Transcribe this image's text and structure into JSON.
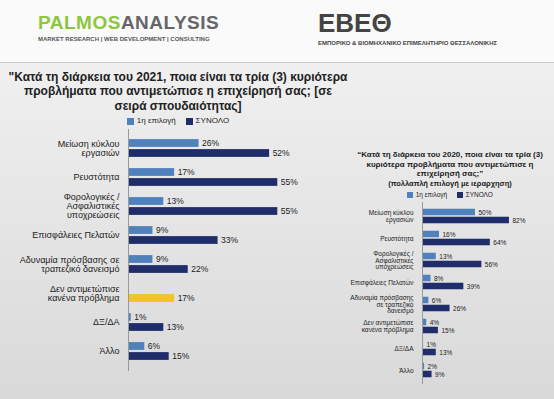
{
  "header": {
    "brand": [
      "PALMOS",
      "ANALYSIS"
    ],
    "tagline": "MARKET RESEARCH | WEB DEVELOPMENT | CONSULTING",
    "org": "ΕΒΕΘ",
    "org_subtitle": "ΕΜΠΟΡΙΚΟ & ΒΙΟΜΗΧΑΝΙΚΟ ΕΠΙΜΕΛΗΤΗΡΙΟ ΘΕΣΣΑΛΟΝΙΚΗΣ"
  },
  "chart_data": [
    {
      "type": "bar",
      "orientation": "horizontal",
      "title": "\"Κατά τη διάρκεια του 2021, ποια είναι τα τρία (3) κυριότερα προβλήματα που αντιμετώπισε η επιχείρησή σας; [σε σειρά σπουδαιότητας]",
      "categories": [
        "Μείωση κύκλου εργασιών",
        "Ρευστότητα",
        "Φορολογικές / Ασφαλιστικές υποχρεώσεις",
        "Επισφάλειες Πελατών",
        "Αδυναμία πρόσβασης σε τραπεζικό δανεισμό",
        "Δεν αντιμετώπισε κανένα πρόβλημα",
        "ΔΞ/ΔΑ",
        "Άλλο"
      ],
      "series": [
        {
          "name": "1η επιλογή",
          "color": "#4f81bd",
          "values": [
            26,
            17,
            13,
            9,
            9,
            null,
            1,
            6
          ],
          "value_labels": [
            "26%",
            "17%",
            "13%",
            "9%",
            "9%",
            null,
            "1%",
            "6%"
          ]
        },
        {
          "name": "ΣΥΝΟΛΟ",
          "color": "#1f2d6b",
          "colors": [
            "#1f2d6b",
            "#1f2d6b",
            "#1f2d6b",
            "#1f2d6b",
            "#1f2d6b",
            "#f2c230",
            "#1f2d6b",
            "#1f2d6b"
          ],
          "values": [
            52,
            55,
            55,
            33,
            22,
            17,
            13,
            15
          ],
          "value_labels": [
            "52%",
            "55%",
            "55%",
            "33%",
            "22%",
            "17%",
            "13%",
            "15%"
          ]
        }
      ],
      "xlim": [
        0,
        70
      ],
      "data_labels": true,
      "tick_labels": "y",
      "legend": "top"
    },
    {
      "type": "bar",
      "orientation": "horizontal",
      "title": "“Κατά τη διάρκεια του 2020, ποια είναι τα τρία (3) κυριότερα προβλήματα που αντιμετώπισε η επιχείρησή σας;”",
      "subtitle": "(πολλαπλή επιλογή με ιεραρχηση)",
      "categories": [
        "Μείωση κύκλου εργασιών",
        "Ρευστότητα",
        "Φορολογικές / Ασφαλιστικές υποχρεώσεις",
        "Επισφάλειες Πελατών",
        "Αδυναμία πρόσβασης σε τραπεζικό δανεισμό",
        "Δεν αντιμετώπισε κανένα πρόβλημα",
        "ΔΞ/ΔΑ",
        "Άλλο"
      ],
      "series": [
        {
          "name": "1η επιλογή",
          "color": "#4f81bd",
          "values": [
            50,
            16,
            13,
            8,
            6,
            4,
            1,
            2
          ],
          "value_labels": [
            "50%",
            "16%",
            "13%",
            "8%",
            "6%",
            "4%",
            "1%",
            "2%"
          ]
        },
        {
          "name": "ΣΥΝΟΛΟ",
          "color": "#1f2d6b",
          "values": [
            82,
            64,
            56,
            39,
            26,
            15,
            13,
            9
          ],
          "value_labels": [
            "82%",
            "64%",
            "56%",
            "39%",
            "26%",
            "15%",
            "13%",
            "9%"
          ]
        }
      ],
      "xlim": [
        0,
        100
      ],
      "data_labels": true,
      "tick_labels": "y",
      "legend": "top"
    }
  ]
}
